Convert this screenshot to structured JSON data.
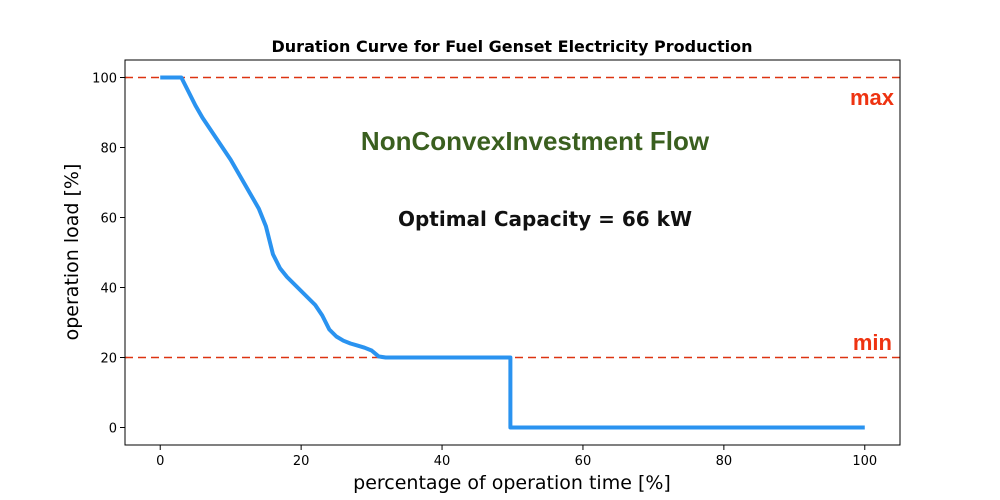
{
  "chart_data": {
    "type": "line",
    "title": "Duration Curve for Fuel Genset Electricity Production",
    "xlabel": "percentage of operation time [%]",
    "ylabel": "operation load [%]",
    "xlim": [
      -5,
      105
    ],
    "ylim": [
      -5,
      105
    ],
    "x_ticks": [
      0,
      20,
      40,
      60,
      80,
      100
    ],
    "y_ticks": [
      0,
      20,
      40,
      60,
      80,
      100
    ],
    "grid": false,
    "series": [
      {
        "color": "#2a93f0",
        "x": [
          0,
          3,
          4,
          5,
          6,
          7,
          8,
          9,
          10,
          11,
          12,
          13,
          14,
          15,
          16,
          17,
          18,
          19,
          20,
          21,
          22,
          23,
          24,
          25,
          26,
          27,
          28,
          29,
          30,
          31,
          32,
          35,
          40,
          45,
          49.7,
          49.7,
          50,
          100
        ],
        "y": [
          100,
          100,
          96,
          92,
          88.5,
          85.5,
          82.5,
          79.5,
          76.5,
          73,
          69.5,
          66,
          62.5,
          57.5,
          49.5,
          45.5,
          43,
          41,
          39,
          37,
          35,
          32,
          28,
          26,
          24.8,
          24,
          23.4,
          22.8,
          22,
          20.3,
          20,
          20,
          20,
          20,
          20,
          0,
          0,
          0
        ]
      }
    ],
    "reference_lines": [
      {
        "y": 100,
        "color": "#dd3311",
        "style": "dashed",
        "label": "max"
      },
      {
        "y": 20,
        "color": "#dd3311",
        "style": "dashed",
        "label": "min"
      }
    ],
    "annotations": [
      {
        "text": "NonConvexInvestment Flow",
        "color": "#3a5f1f"
      },
      {
        "text": "Optimal Capacity = 66 kW",
        "color": "#111111"
      }
    ]
  }
}
